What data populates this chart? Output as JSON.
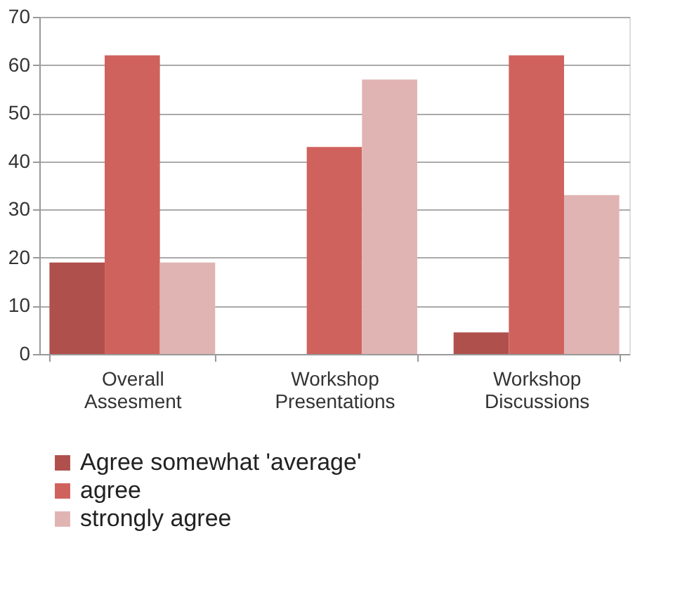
{
  "chart_data": {
    "type": "bar",
    "categories": [
      "Overall Assesment",
      "Workshop Presentations",
      "Workshop Discussions"
    ],
    "series": [
      {
        "name": "Agree somewhat 'average'",
        "color": "#b0504c",
        "values": [
          19,
          0,
          4.5
        ]
      },
      {
        "name": "agree",
        "color": "#d0625d",
        "values": [
          62,
          43,
          62
        ]
      },
      {
        "name": "strongly agree",
        "color": "#e0b4b3",
        "values": [
          19,
          57,
          33
        ]
      }
    ],
    "ylim": [
      0,
      70
    ],
    "yticks": [
      0,
      10,
      20,
      30,
      40,
      50,
      60,
      70
    ],
    "grid": "y",
    "legend": "bottom left"
  }
}
